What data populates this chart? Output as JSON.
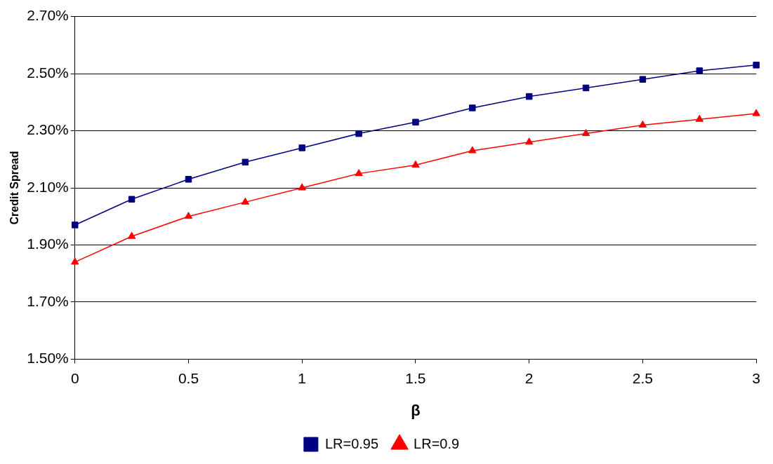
{
  "chart_data": {
    "type": "line",
    "xlabel": "β",
    "ylabel": "Credit Spread",
    "x": [
      0,
      0.25,
      0.5,
      0.75,
      1,
      1.25,
      1.5,
      1.75,
      2,
      2.25,
      2.5,
      2.75,
      3
    ],
    "series": [
      {
        "name": "LR=0.95",
        "color": "#000080",
        "marker": "square",
        "values": [
          1.97,
          2.06,
          2.13,
          2.19,
          2.24,
          2.29,
          2.33,
          2.38,
          2.42,
          2.45,
          2.48,
          2.51,
          2.53
        ]
      },
      {
        "name": "LR=0.9",
        "color": "#ff0000",
        "marker": "triangle",
        "values": [
          1.84,
          1.93,
          2.0,
          2.05,
          2.1,
          2.15,
          2.18,
          2.23,
          2.26,
          2.29,
          2.32,
          2.34,
          2.36
        ]
      }
    ],
    "xlim": [
      0,
      3
    ],
    "xticks": [
      0,
      0.5,
      1,
      1.5,
      2,
      2.5,
      3
    ],
    "ylim": [
      1.5,
      2.7
    ],
    "yticks": [
      {
        "value": 1.5,
        "label": "1.50%"
      },
      {
        "value": 1.7,
        "label": "1.70%"
      },
      {
        "value": 1.9,
        "label": "1.90%"
      },
      {
        "value": 2.1,
        "label": "2.10%"
      },
      {
        "value": 2.3,
        "label": "2.30%"
      },
      {
        "value": 2.5,
        "label": "2.50%"
      },
      {
        "value": 2.7,
        "label": "2.70%"
      }
    ],
    "grid": "y",
    "legend": "bottom",
    "line_style": "solid"
  }
}
